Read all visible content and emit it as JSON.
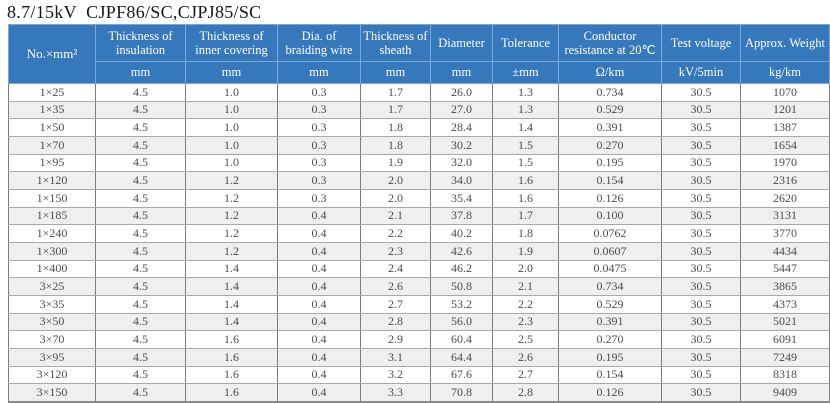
{
  "title": "8.7/15kV  CJPF86/SC,CJPJ85/SC",
  "colors": {
    "header_bg": "#3678bc",
    "header_text": "#ffffff",
    "row_alt_bg": "#efefef",
    "grid_line": "#8a8a8a",
    "cell_text": "#4c4c4c",
    "title_text": "#161616"
  },
  "table": {
    "columns": [
      {
        "label": "No.×mm²",
        "unit": ""
      },
      {
        "label": "Thickness of insulation",
        "unit": "mm"
      },
      {
        "label": "Thickness of inner covering",
        "unit": "mm"
      },
      {
        "label": "Dia. of braiding wire",
        "unit": "mm"
      },
      {
        "label": "Thickness of sheath",
        "unit": "mm"
      },
      {
        "label": "Diameter",
        "unit": "mm"
      },
      {
        "label": "Tolerance",
        "unit": "±mm"
      },
      {
        "label": "Conductor resistance at 20℃",
        "unit": "Ω/km"
      },
      {
        "label": "Test voltage",
        "unit": "kV/5min"
      },
      {
        "label": "Approx. Weight",
        "unit": "kg/km"
      }
    ],
    "rows": [
      [
        "1×25",
        "4.5",
        "1.0",
        "0.3",
        "1.7",
        "26.0",
        "1.3",
        "0.734",
        "30.5",
        "1070"
      ],
      [
        "1×35",
        "4.5",
        "1.0",
        "0.3",
        "1.7",
        "27.0",
        "1.3",
        "0.529",
        "30.5",
        "1201"
      ],
      [
        "1×50",
        "4.5",
        "1.0",
        "0.3",
        "1.8",
        "28.4",
        "1.4",
        "0.391",
        "30.5",
        "1387"
      ],
      [
        "1×70",
        "4.5",
        "1.0",
        "0.3",
        "1.8",
        "30.2",
        "1.5",
        "0.270",
        "30.5",
        "1654"
      ],
      [
        "1×95",
        "4.5",
        "1.0",
        "0.3",
        "1.9",
        "32.0",
        "1.5",
        "0.195",
        "30.5",
        "1970"
      ],
      [
        "1×120",
        "4.5",
        "1.2",
        "0.3",
        "2.0",
        "34.0",
        "1.6",
        "0.154",
        "30.5",
        "2316"
      ],
      [
        "1×150",
        "4.5",
        "1.2",
        "0.3",
        "2.0",
        "35.4",
        "1.6",
        "0.126",
        "30.5",
        "2620"
      ],
      [
        "1×185",
        "4.5",
        "1.2",
        "0.4",
        "2.1",
        "37.8",
        "1.7",
        "0.100",
        "30.5",
        "3131"
      ],
      [
        "1×240",
        "4.5",
        "1.2",
        "0.4",
        "2.2",
        "40.2",
        "1.8",
        "0.0762",
        "30.5",
        "3770"
      ],
      [
        "1×300",
        "4.5",
        "1.2",
        "0.4",
        "2.3",
        "42.6",
        "1.9",
        "0.0607",
        "30.5",
        "4434"
      ],
      [
        "1×400",
        "4.5",
        "1.4",
        "0.4",
        "2.4",
        "46.2",
        "2.0",
        "0.0475",
        "30.5",
        "5447"
      ],
      [
        "3×25",
        "4.5",
        "1.4",
        "0.4",
        "2.6",
        "50.8",
        "2.1",
        "0.734",
        "30.5",
        "3865"
      ],
      [
        "3×35",
        "4.5",
        "1.4",
        "0.4",
        "2.7",
        "53.2",
        "2.2",
        "0.529",
        "30.5",
        "4373"
      ],
      [
        "3×50",
        "4.5",
        "1.4",
        "0.4",
        "2.8",
        "56.0",
        "2.3",
        "0.391",
        "30.5",
        "5021"
      ],
      [
        "3×70",
        "4.5",
        "1.6",
        "0.4",
        "2.9",
        "60.4",
        "2.5",
        "0.270",
        "30.5",
        "6091"
      ],
      [
        "3×95",
        "4.5",
        "1.6",
        "0.4",
        "3.1",
        "64.4",
        "2.6",
        "0.195",
        "30.5",
        "7249"
      ],
      [
        "3×120",
        "4.5",
        "1.6",
        "0.4",
        "3.2",
        "67.6",
        "2.7",
        "0.154",
        "30.5",
        "8318"
      ],
      [
        "3×150",
        "4.5",
        "1.6",
        "0.4",
        "3.3",
        "70.8",
        "2.8",
        "0.126",
        "30.5",
        "9409"
      ]
    ]
  }
}
